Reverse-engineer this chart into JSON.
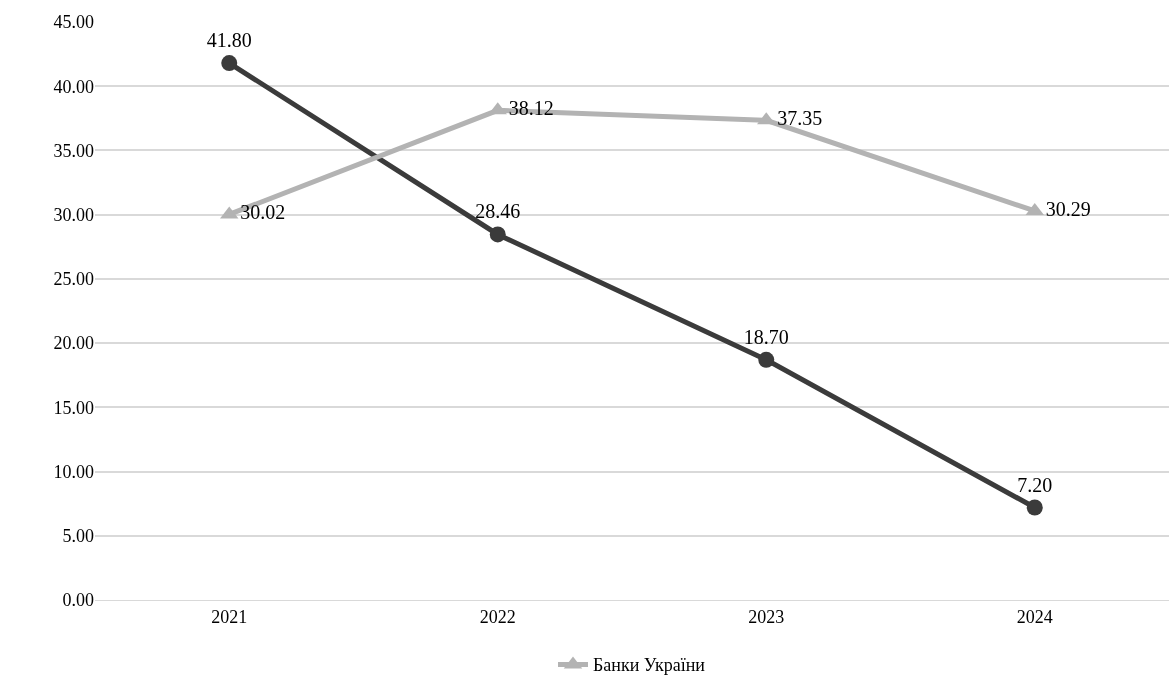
{
  "chart_data": {
    "type": "line",
    "categories": [
      "2021",
      "2022",
      "2023",
      "2024"
    ],
    "series": [
      {
        "color": "#3b3b3b",
        "marker": "circle",
        "values": [
          41.8,
          28.46,
          18.7,
          7.2
        ],
        "value_labels": [
          "41.80",
          "28.46",
          "18.70",
          "7.20"
        ]
      },
      {
        "name": "Банки України",
        "color": "#b3b3b3",
        "marker": "triangle",
        "values": [
          30.02,
          38.12,
          37.35,
          30.29
        ],
        "value_labels": [
          "30.02",
          "38.12",
          "37.35",
          "30.29"
        ]
      }
    ],
    "ylim": [
      0,
      45
    ],
    "yticks": [
      {
        "value": 0,
        "label": "0.00"
      },
      {
        "value": 5,
        "label": "5.00"
      },
      {
        "value": 10,
        "label": "10.00"
      },
      {
        "value": 15,
        "label": "15.00"
      },
      {
        "value": 20,
        "label": "20.00"
      },
      {
        "value": 25,
        "label": "25.00"
      },
      {
        "value": 30,
        "label": "30.00"
      },
      {
        "value": 35,
        "label": "35.00"
      },
      {
        "value": 40,
        "label": "40.00"
      },
      {
        "value": 45,
        "label": "45.00"
      }
    ],
    "grid": "y",
    "legend": "bottom",
    "line_style": "solid"
  }
}
